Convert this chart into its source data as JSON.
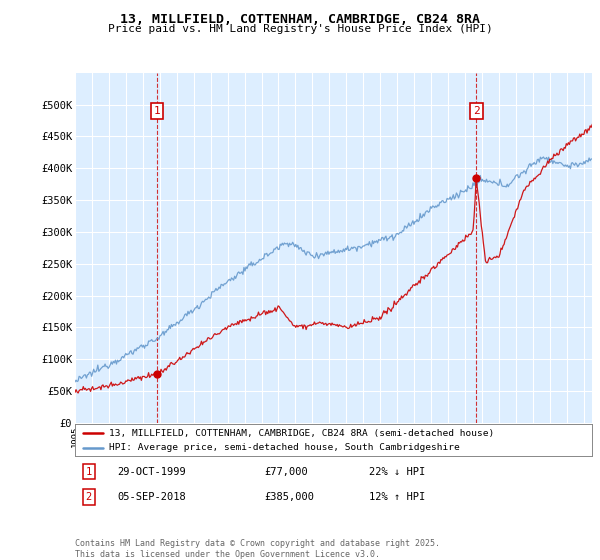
{
  "title_line1": "13, MILLFIELD, COTTENHAM, CAMBRIDGE, CB24 8RA",
  "title_line2": "Price paid vs. HM Land Registry's House Price Index (HPI)",
  "ylim": [
    0,
    550000
  ],
  "yticks": [
    0,
    50000,
    100000,
    150000,
    200000,
    250000,
    300000,
    350000,
    400000,
    450000,
    500000
  ],
  "ytick_labels": [
    "£0",
    "£50K",
    "£100K",
    "£150K",
    "£200K",
    "£250K",
    "£300K",
    "£350K",
    "£400K",
    "£450K",
    "£500K"
  ],
  "marker1_year": 1999.83,
  "marker1_price": 77000,
  "marker1_label": "1",
  "marker1_date": "29-OCT-1999",
  "marker1_amount": "£77,000",
  "marker1_hpi": "22% ↓ HPI",
  "marker2_year": 2018.67,
  "marker2_price": 385000,
  "marker2_label": "2",
  "marker2_date": "05-SEP-2018",
  "marker2_amount": "£385,000",
  "marker2_hpi": "12% ↑ HPI",
  "line1_color": "#cc0000",
  "line2_color": "#6699cc",
  "vline_color": "#cc0000",
  "grid_color": "#ccddee",
  "bg_color": "#ffffff",
  "chart_bg": "#ddeeff",
  "legend_line1": "13, MILLFIELD, COTTENHAM, CAMBRIDGE, CB24 8RA (semi-detached house)",
  "legend_line2": "HPI: Average price, semi-detached house, South Cambridgeshire",
  "footnote": "Contains HM Land Registry data © Crown copyright and database right 2025.\nThis data is licensed under the Open Government Licence v3.0.",
  "figure_width": 6.0,
  "figure_height": 5.6,
  "dpi": 100
}
